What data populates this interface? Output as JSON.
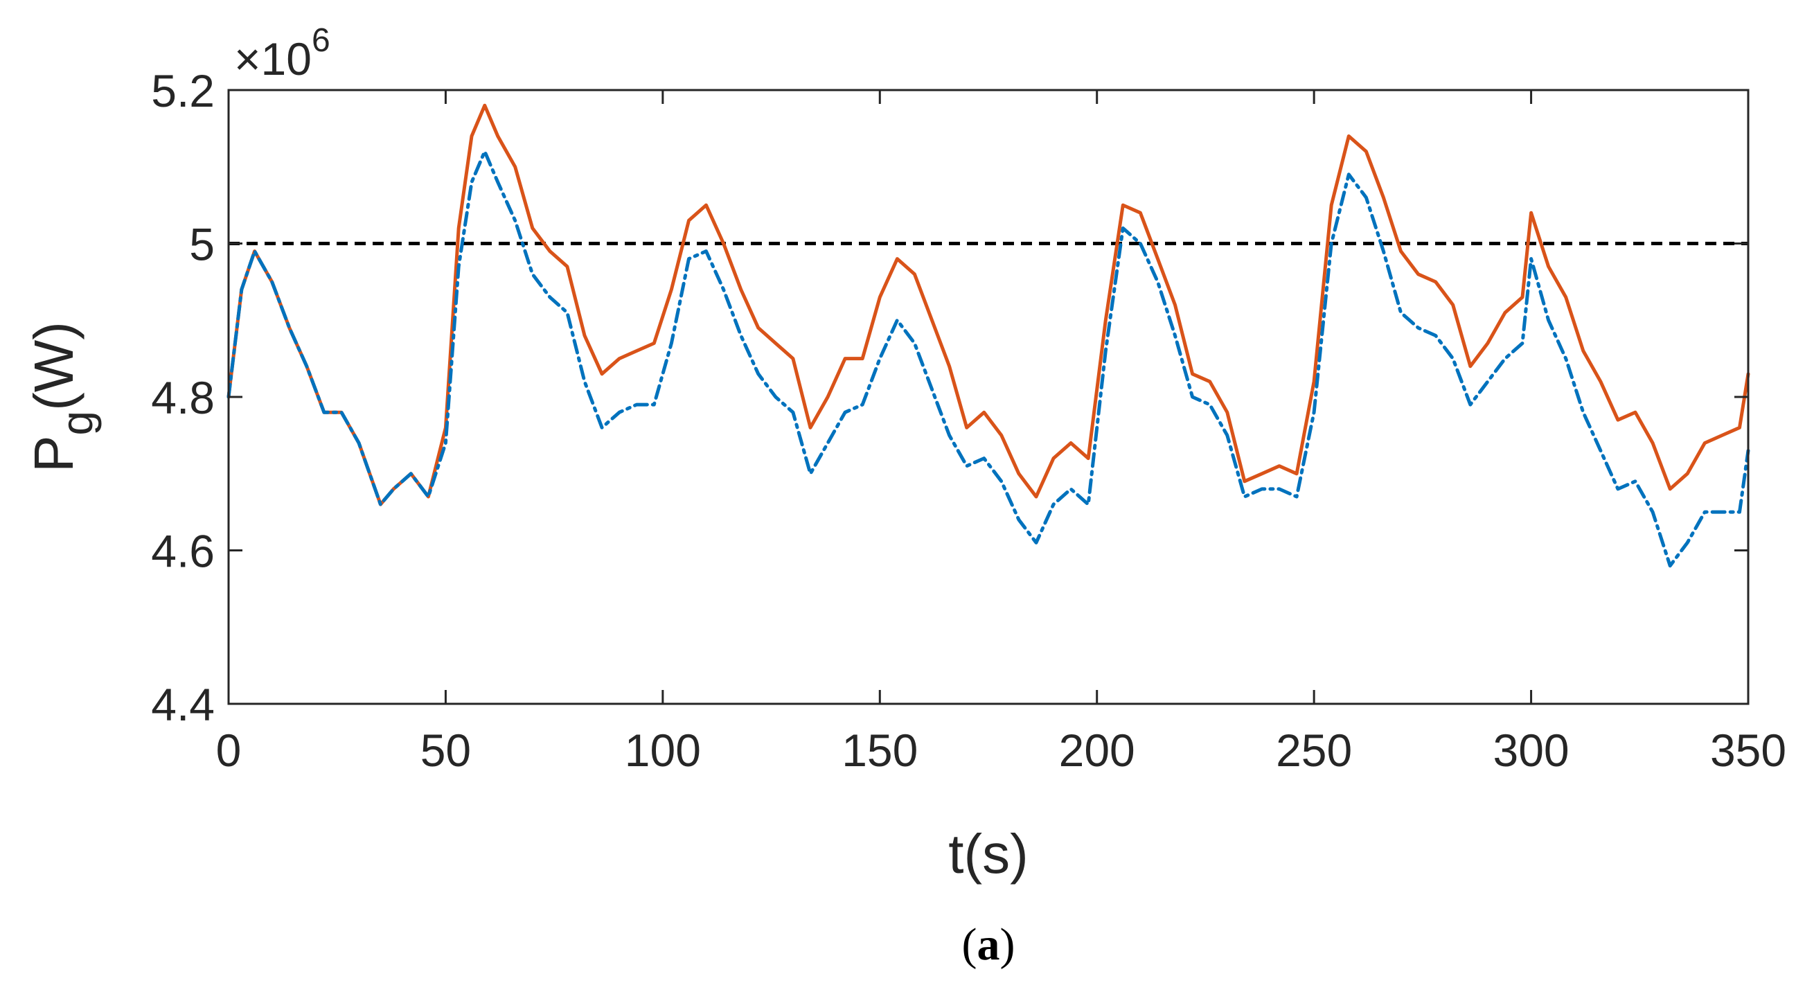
{
  "chart_data": {
    "type": "line",
    "title": "",
    "xlabel": "t(s)",
    "ylabel_main": "P",
    "ylabel_sub": "g",
    "ylabel_tail": "(W)",
    "y_multiplier_prefix": "×10",
    "y_multiplier_exp": "6",
    "caption_open": "(",
    "caption_letter": "a",
    "caption_close": ")",
    "xlim": [
      0,
      350
    ],
    "ylim": [
      4.4,
      5.2
    ],
    "x_ticks": [
      0,
      50,
      100,
      150,
      200,
      250,
      300,
      350
    ],
    "x_tick_labels": [
      "0",
      "50",
      "100",
      "150",
      "200",
      "250",
      "300",
      "350"
    ],
    "y_ticks": [
      4.4,
      4.6,
      4.8,
      5.0,
      5.2
    ],
    "y_tick_labels": [
      "4.4",
      "4.6",
      "4.8",
      "5",
      "5.2"
    ],
    "reference_line": {
      "y": 5.0,
      "color": "#000000",
      "style": "dashed"
    },
    "series": [
      {
        "name": "orange-solid",
        "color": "#D95319",
        "style": "solid",
        "x": [
          0,
          3,
          6,
          10,
          14,
          18,
          22,
          26,
          30,
          35,
          38,
          42,
          46,
          50,
          53,
          56,
          59,
          62,
          66,
          70,
          74,
          78,
          82,
          86,
          90,
          94,
          98,
          102,
          106,
          110,
          114,
          118,
          122,
          126,
          130,
          134,
          138,
          142,
          146,
          150,
          154,
          158,
          162,
          166,
          170,
          174,
          178,
          182,
          186,
          190,
          194,
          198,
          202,
          206,
          210,
          214,
          218,
          222,
          226,
          230,
          234,
          238,
          242,
          246,
          250,
          254,
          258,
          262,
          266,
          270,
          274,
          278,
          282,
          286,
          290,
          294,
          298,
          300,
          304,
          308,
          312,
          316,
          320,
          324,
          328,
          332,
          336,
          340,
          344,
          348,
          350
        ],
        "y": [
          4.8,
          4.94,
          4.99,
          4.95,
          4.89,
          4.84,
          4.78,
          4.78,
          4.74,
          4.66,
          4.68,
          4.7,
          4.67,
          4.76,
          5.02,
          5.14,
          5.18,
          5.14,
          5.1,
          5.02,
          4.99,
          4.97,
          4.88,
          4.83,
          4.85,
          4.86,
          4.87,
          4.94,
          5.03,
          5.05,
          5.0,
          4.94,
          4.89,
          4.87,
          4.85,
          4.76,
          4.8,
          4.85,
          4.85,
          4.93,
          4.98,
          4.96,
          4.9,
          4.84,
          4.76,
          4.78,
          4.75,
          4.7,
          4.67,
          4.72,
          4.74,
          4.72,
          4.9,
          5.05,
          5.04,
          4.98,
          4.92,
          4.83,
          4.82,
          4.78,
          4.69,
          4.7,
          4.71,
          4.7,
          4.82,
          5.05,
          5.14,
          5.12,
          5.06,
          4.99,
          4.96,
          4.95,
          4.92,
          4.84,
          4.87,
          4.91,
          4.93,
          5.04,
          4.97,
          4.93,
          4.86,
          4.82,
          4.77,
          4.78,
          4.74,
          4.68,
          4.7,
          4.74,
          4.75,
          4.76,
          4.83
        ]
      },
      {
        "name": "blue-dashdot",
        "color": "#0072BD",
        "style": "dashdot",
        "x": [
          0,
          3,
          6,
          10,
          14,
          18,
          22,
          26,
          30,
          35,
          38,
          42,
          46,
          50,
          53,
          56,
          59,
          62,
          66,
          70,
          74,
          78,
          82,
          86,
          90,
          94,
          98,
          102,
          106,
          110,
          114,
          118,
          122,
          126,
          130,
          134,
          138,
          142,
          146,
          150,
          154,
          158,
          162,
          166,
          170,
          174,
          178,
          182,
          186,
          190,
          194,
          198,
          202,
          206,
          210,
          214,
          218,
          222,
          226,
          230,
          234,
          238,
          242,
          246,
          250,
          254,
          258,
          262,
          266,
          270,
          274,
          278,
          282,
          286,
          290,
          294,
          298,
          300,
          304,
          308,
          312,
          316,
          320,
          324,
          328,
          332,
          336,
          340,
          344,
          348,
          350
        ],
        "y": [
          4.8,
          4.94,
          4.99,
          4.95,
          4.89,
          4.84,
          4.78,
          4.78,
          4.74,
          4.66,
          4.68,
          4.7,
          4.67,
          4.74,
          4.97,
          5.08,
          5.12,
          5.08,
          5.03,
          4.96,
          4.93,
          4.91,
          4.82,
          4.76,
          4.78,
          4.79,
          4.79,
          4.87,
          4.98,
          4.99,
          4.94,
          4.88,
          4.83,
          4.8,
          4.78,
          4.7,
          4.74,
          4.78,
          4.79,
          4.85,
          4.9,
          4.87,
          4.81,
          4.75,
          4.71,
          4.72,
          4.69,
          4.64,
          4.61,
          4.66,
          4.68,
          4.66,
          4.86,
          5.02,
          5.0,
          4.95,
          4.88,
          4.8,
          4.79,
          4.75,
          4.67,
          4.68,
          4.68,
          4.67,
          4.78,
          5.0,
          5.09,
          5.06,
          4.99,
          4.91,
          4.89,
          4.88,
          4.85,
          4.79,
          4.82,
          4.85,
          4.87,
          4.98,
          4.9,
          4.85,
          4.78,
          4.73,
          4.68,
          4.69,
          4.65,
          4.58,
          4.61,
          4.65,
          4.65,
          4.65,
          4.73
        ]
      }
    ]
  }
}
